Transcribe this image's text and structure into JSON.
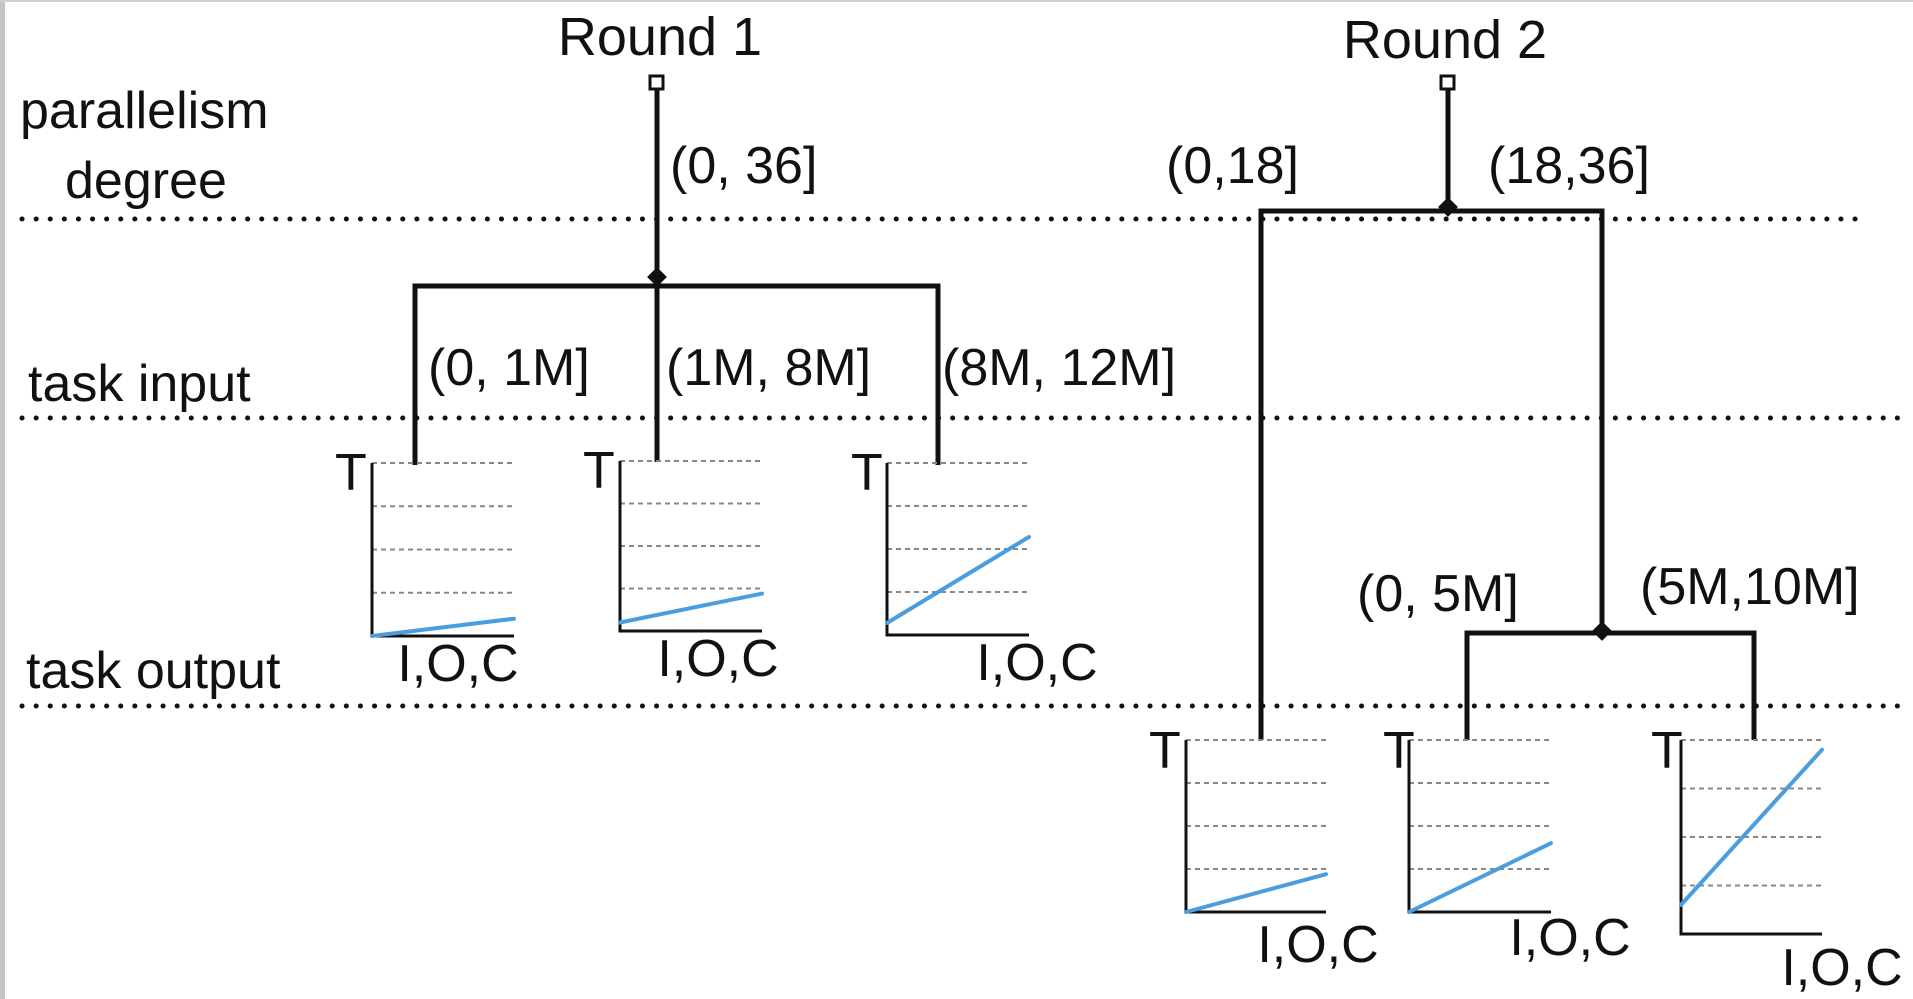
{
  "row_labels": {
    "parallelism_line1": "parallelism",
    "parallelism_line2": "degree",
    "task_input": "task input",
    "task_output": "task output"
  },
  "round1": {
    "title": "Round 1",
    "parallelism_range": "(0, 36]",
    "input_ranges": [
      "(0, 1M]",
      "(1M, 8M]",
      "(8M, 12M]"
    ]
  },
  "round2": {
    "title": "Round 2",
    "parallelism_ranges": [
      "(0,18]",
      "(18,36]"
    ],
    "output_ranges": [
      "(0, 5M]",
      "(5M,10M]"
    ]
  },
  "mini_chart": {
    "y_label": "T",
    "x_label": "I,O,C",
    "line_color": "#4a9ee0"
  },
  "mini_chart_lines": [
    {
      "start": 0.0,
      "end": 0.1
    },
    {
      "start": 0.05,
      "end": 0.22
    },
    {
      "start": 0.07,
      "end": 0.57
    },
    {
      "start": 0.0,
      "end": 0.22
    },
    {
      "start": 0.0,
      "end": 0.4
    },
    {
      "start": 0.15,
      "end": 0.95
    }
  ],
  "colors": {
    "stroke": "#111111",
    "grid": "#888888"
  }
}
